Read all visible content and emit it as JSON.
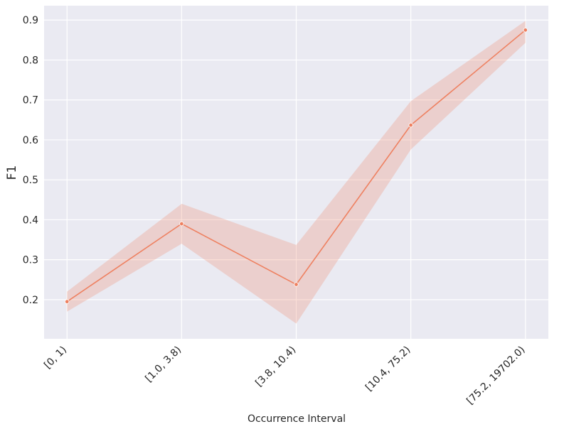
{
  "chart_data": {
    "type": "line",
    "x_label": "Occurrence Interval",
    "y_label": "F1",
    "categories": [
      "[0, 1)",
      "[1.0, 3.8)",
      "[3.8, 10.4)",
      "[10.4, 75.2)",
      "[75.2, 19702.0)"
    ],
    "values": [
      0.195,
      0.39,
      0.238,
      0.637,
      0.875
    ],
    "ci_lower": [
      0.17,
      0.34,
      0.14,
      0.576,
      0.843
    ],
    "ci_upper": [
      0.22,
      0.44,
      0.337,
      0.697,
      0.898
    ],
    "color": "#ee8060",
    "ylim": [
      0.102,
      0.936
    ],
    "yticks": [
      0.2,
      0.3,
      0.4,
      0.5,
      0.6,
      0.7,
      0.8,
      0.9
    ],
    "grid": true
  }
}
